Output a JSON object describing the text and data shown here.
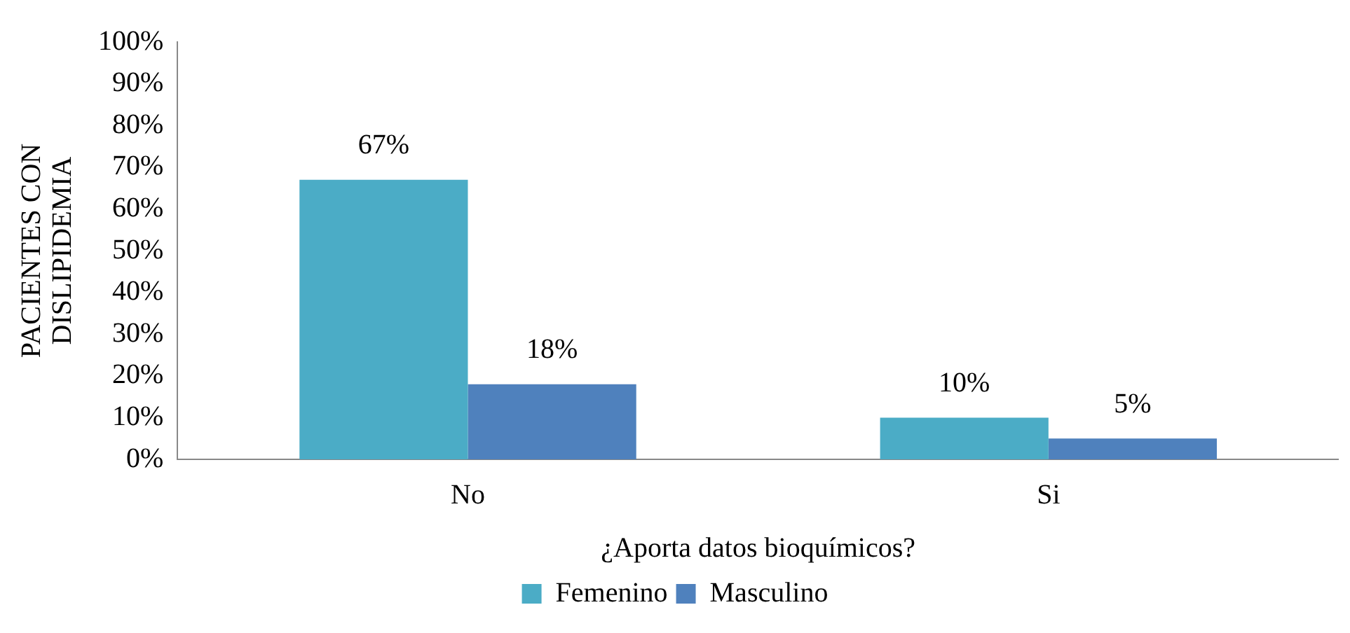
{
  "chart_data": {
    "type": "bar",
    "xlabel": "¿Aporta datos bioquímicos?",
    "ylabel": "PACIENTES CON DISLIPIDEMIA",
    "categories": [
      "No",
      "Si"
    ],
    "series": [
      {
        "name": "Femenino",
        "color": "#4bacc6",
        "values": [
          67,
          10
        ],
        "value_labels": [
          "67%",
          "10%"
        ]
      },
      {
        "name": "Masculino",
        "color": "#4f81bd",
        "values": [
          18,
          5
        ],
        "value_labels": [
          "18%",
          "5%"
        ]
      }
    ],
    "ylim": [
      0,
      100
    ],
    "yticks": [
      {
        "value": 0,
        "label": "0%"
      },
      {
        "value": 10,
        "label": "10%"
      },
      {
        "value": 20,
        "label": "20%"
      },
      {
        "value": 30,
        "label": "30%"
      },
      {
        "value": 40,
        "label": "40%"
      },
      {
        "value": 50,
        "label": "50%"
      },
      {
        "value": 60,
        "label": "60%"
      },
      {
        "value": 70,
        "label": "70%"
      },
      {
        "value": 80,
        "label": "80%"
      },
      {
        "value": 90,
        "label": "90%"
      },
      {
        "value": 100,
        "label": "100%"
      }
    ],
    "grid": false,
    "legend": "bottom"
  }
}
